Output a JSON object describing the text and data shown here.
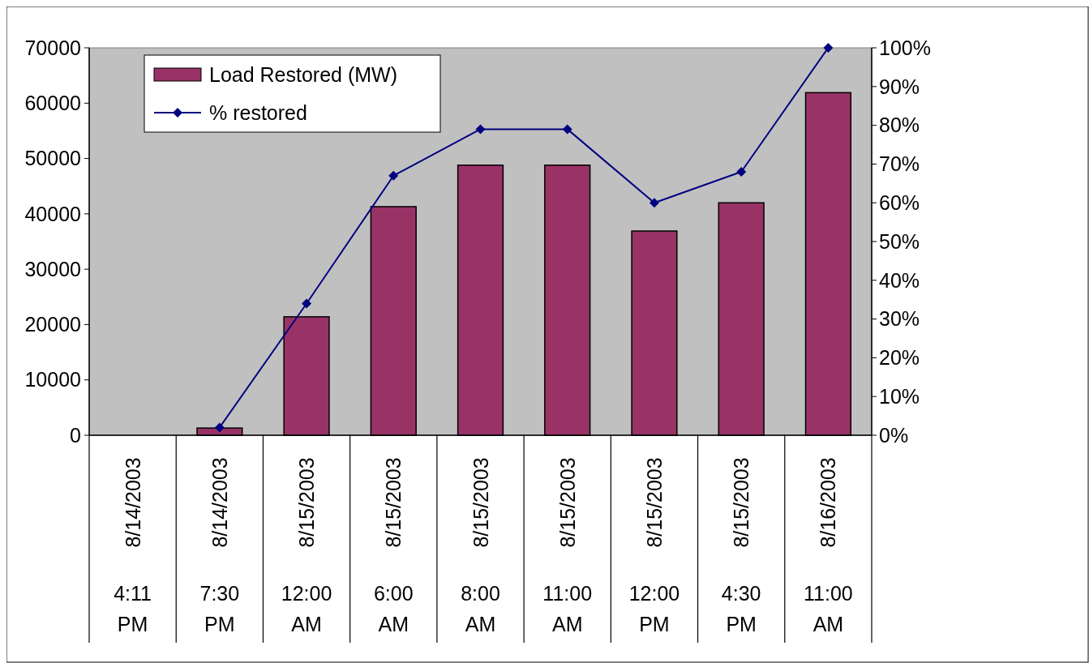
{
  "chart_data": {
    "type": "bar",
    "categories": [
      "8/14/2003 4:11 PM",
      "8/14/2003 7:30 PM",
      "8/15/2003 12:00 AM",
      "8/15/2003 6:00 AM",
      "8/15/2003 8:00 AM",
      "8/15/2003 11:00 AM",
      "8/15/2003 12:00 PM",
      "8/15/2003 4:30 PM",
      "8/16/2003 11:00 AM"
    ],
    "series": [
      {
        "name": "Load Restored (MW)",
        "color": "#993366",
        "values": [
          0,
          1300,
          21400,
          41300,
          48800,
          48800,
          36900,
          42000,
          61900
        ]
      },
      {
        "name": "% restored",
        "type": "line",
        "axis": "y2",
        "color": "#000080",
        "marker": "diamond",
        "values": [
          null,
          2,
          34,
          67,
          79,
          79,
          60,
          68,
          100
        ]
      }
    ],
    "ylim": [
      0,
      70000
    ],
    "yticks": [
      0,
      10000,
      20000,
      30000,
      40000,
      50000,
      60000,
      70000
    ],
    "y2lim": [
      0,
      100
    ],
    "y2ticks": [
      {
        "value": 0,
        "label": "0%"
      },
      {
        "value": 10,
        "label": "10%"
      },
      {
        "value": 20,
        "label": "20%"
      },
      {
        "value": 30,
        "label": "30%"
      },
      {
        "value": 40,
        "label": "40%"
      },
      {
        "value": 50,
        "label": "50%"
      },
      {
        "value": 60,
        "label": "60%"
      },
      {
        "value": 70,
        "label": "70%"
      },
      {
        "value": 80,
        "label": "80%"
      },
      {
        "value": 90,
        "label": "90%"
      },
      {
        "value": 100,
        "label": "100%"
      }
    ],
    "legend": "top left"
  }
}
